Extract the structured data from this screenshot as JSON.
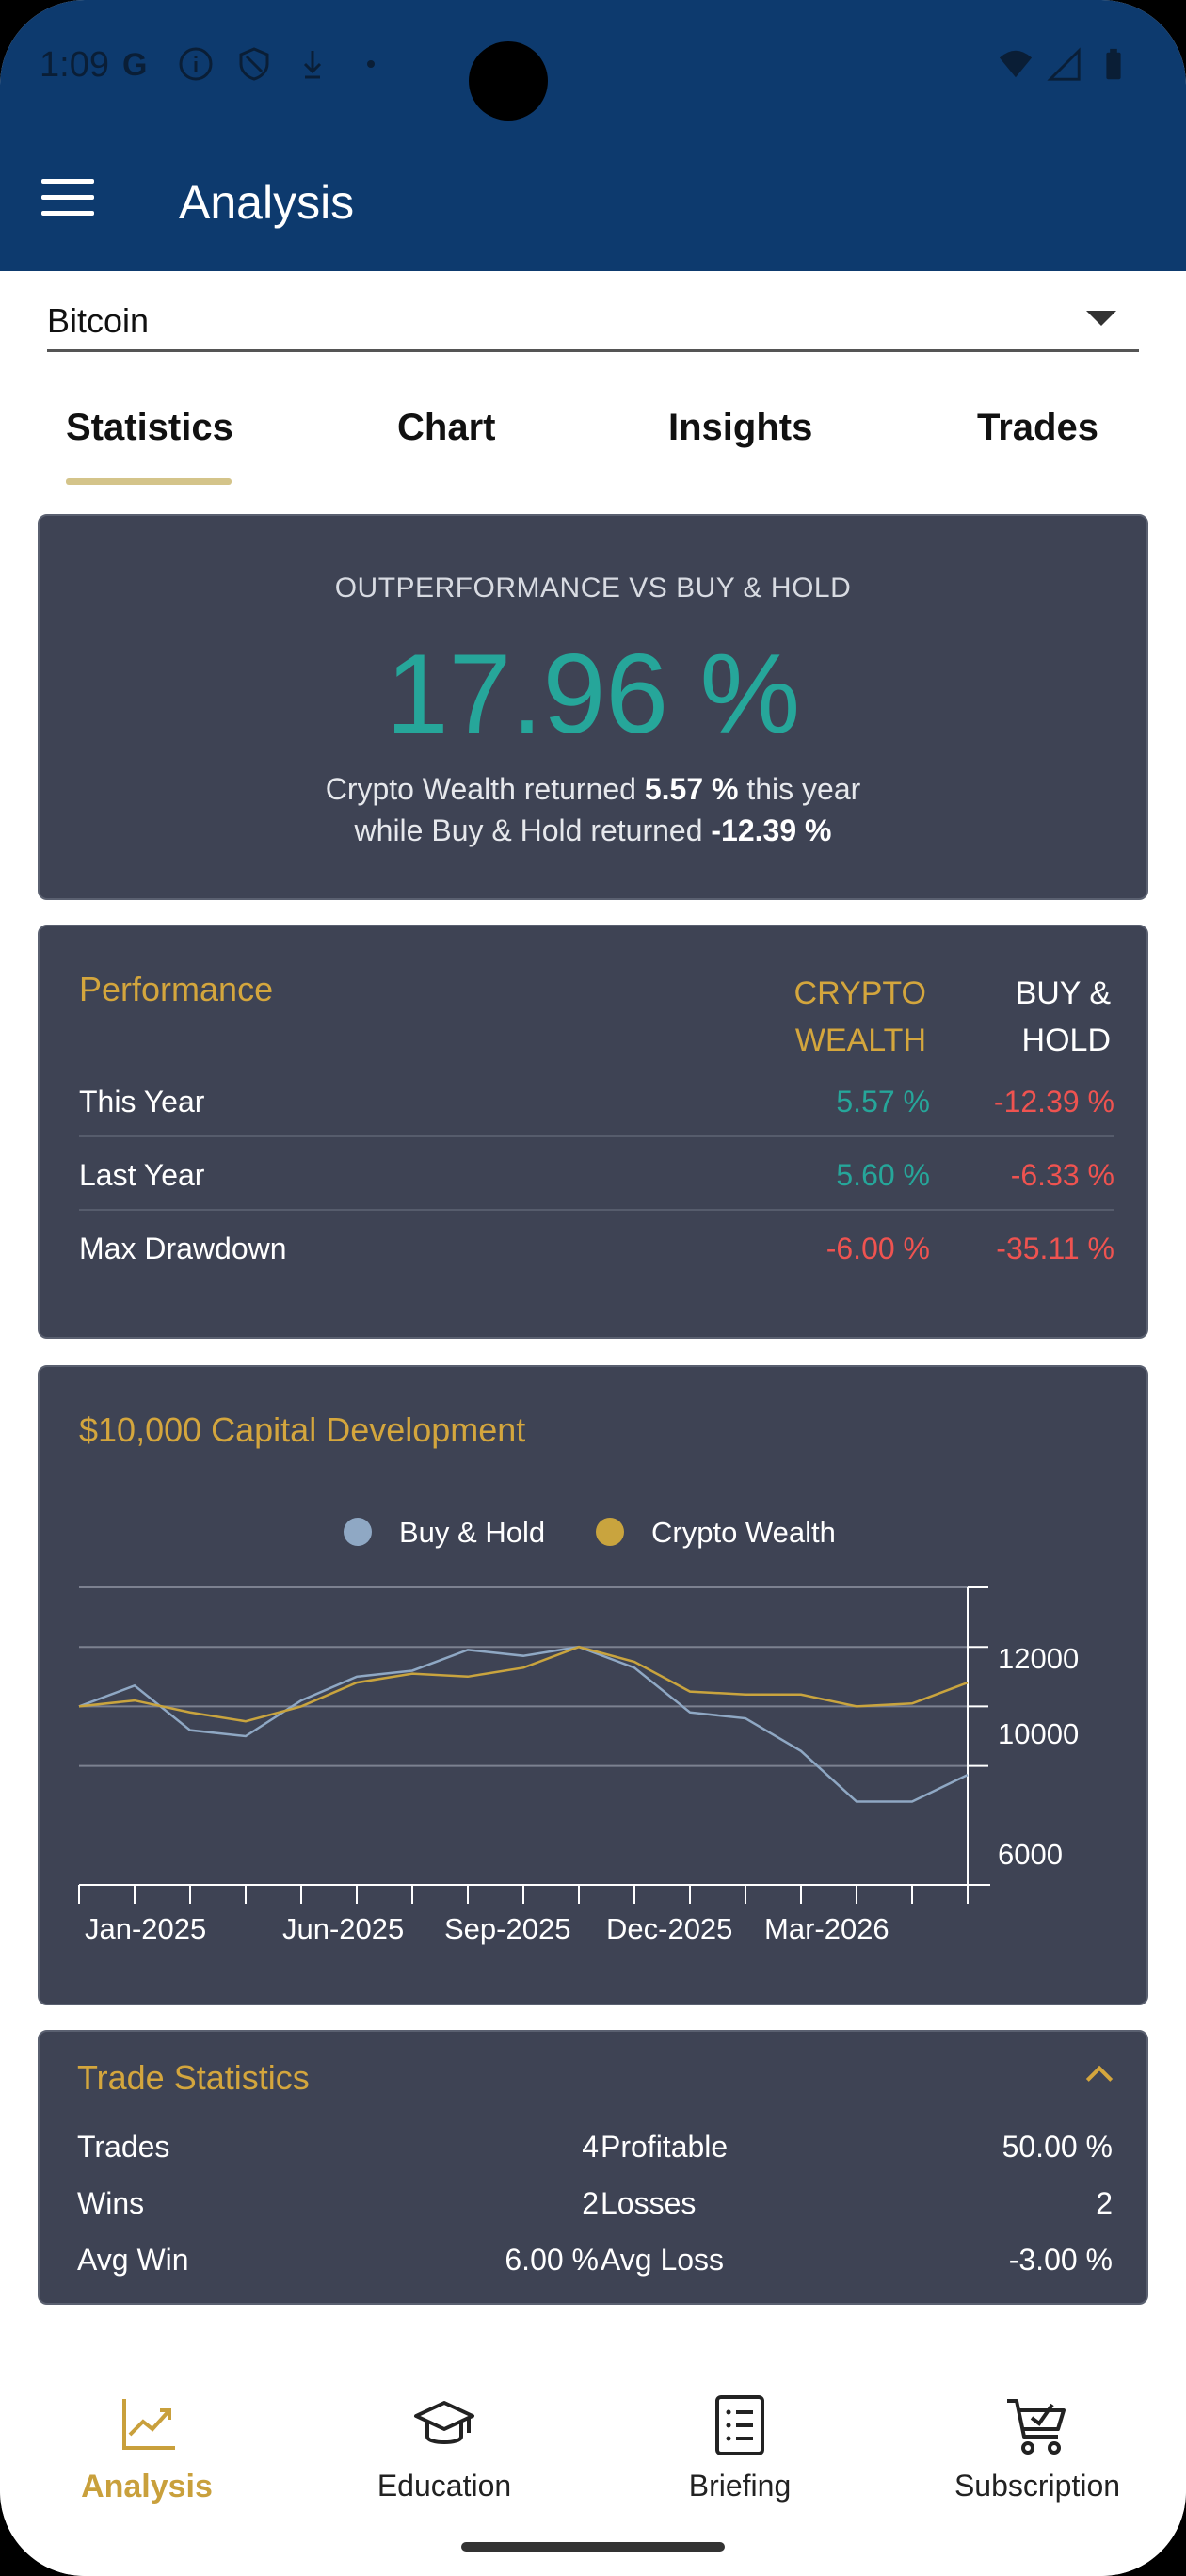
{
  "status_bar": {
    "time": "1:09"
  },
  "header": {
    "title": "Analysis"
  },
  "selector": {
    "value": "Bitcoin"
  },
  "tabs": [
    {
      "label": "Statistics",
      "active": true
    },
    {
      "label": "Chart",
      "active": false
    },
    {
      "label": "Insights",
      "active": false
    },
    {
      "label": "Trades",
      "active": false
    }
  ],
  "outperformance": {
    "label": "OUTPERFORMANCE VS BUY & HOLD",
    "value": "17.96 %",
    "line1_prefix": "Crypto Wealth returned",
    "line1_value": "5.57 %",
    "line1_suffix": "this year",
    "line2_prefix": "while Buy & Hold returned",
    "line2_value": "-12.39 %"
  },
  "performance": {
    "title": "Performance",
    "col_cw_line1": "CRYPTO",
    "col_cw_line2": "WEALTH",
    "col_bh_line1": "BUY &",
    "col_bh_line2": "HOLD",
    "rows": [
      {
        "label": "This Year",
        "cw": "5.57 %",
        "bh": "-12.39 %"
      },
      {
        "label": "Last Year",
        "cw": "5.60 %",
        "bh": "-6.33 %"
      },
      {
        "label": "Max Drawdown",
        "cw": "-6.00 %",
        "bh": "-35.11 %"
      }
    ]
  },
  "capital_chart": {
    "title": "$10,000 Capital Development",
    "legend": [
      "Buy & Hold",
      "Crypto Wealth"
    ],
    "colors": {
      "buy_hold": "#8fa8c4",
      "crypto_wealth": "#c9a43e",
      "grid": "#7c8190"
    },
    "y_ticks": [
      "12000",
      "10000",
      "6000"
    ],
    "x_ticks": [
      "Jan-2025",
      "Jun-2025",
      "Sep-2025",
      "Dec-2025",
      "Mar-2026"
    ]
  },
  "chart_data": {
    "type": "line",
    "title": "$10,000 Capital Development",
    "xlabel": "",
    "ylabel": "",
    "x": [
      "2024-12",
      "2025-01",
      "2025-02",
      "2025-03",
      "2025-04",
      "2025-05",
      "2025-06",
      "2025-07",
      "2025-08",
      "2025-09",
      "2025-10",
      "2025-11",
      "2025-12",
      "2026-01",
      "2026-02",
      "2026-03",
      "2026-04"
    ],
    "series": [
      {
        "name": "Buy & Hold",
        "values": [
          10000,
          10700,
          9200,
          9000,
          10200,
          11000,
          11200,
          11900,
          11700,
          12000,
          11300,
          9800,
          9600,
          8500,
          6800,
          6800,
          7700
        ]
      },
      {
        "name": "Crypto Wealth",
        "values": [
          10000,
          10200,
          9800,
          9500,
          10000,
          10800,
          11100,
          11000,
          11300,
          12000,
          11500,
          10500,
          10400,
          10400,
          10000,
          10100,
          10800
        ]
      }
    ],
    "yticks": [
      6000,
      10000,
      12000
    ],
    "legend_position": "top-center",
    "grid": true
  },
  "trade_stats": {
    "title": "Trade Statistics",
    "cells": [
      {
        "label": "Trades",
        "value": "4",
        "tone": "plain"
      },
      {
        "label": "Profitable",
        "value": "50.00 %",
        "tone": "pos"
      },
      {
        "label": "Wins",
        "value": "2",
        "tone": "plain"
      },
      {
        "label": "Losses",
        "value": "2",
        "tone": "plain"
      },
      {
        "label": "Avg Win",
        "value": "6.00 %",
        "tone": "pos"
      },
      {
        "label": "Avg Loss",
        "value": "-3.00 %",
        "tone": "neg"
      }
    ]
  },
  "bottom_nav": [
    {
      "label": "Analysis",
      "icon": "trending-chart-icon",
      "active": true
    },
    {
      "label": "Education",
      "icon": "graduation-cap-icon",
      "active": false
    },
    {
      "label": "Briefing",
      "icon": "document-list-icon",
      "active": false
    },
    {
      "label": "Subscription",
      "icon": "shopping-cart-icon",
      "active": false
    }
  ]
}
